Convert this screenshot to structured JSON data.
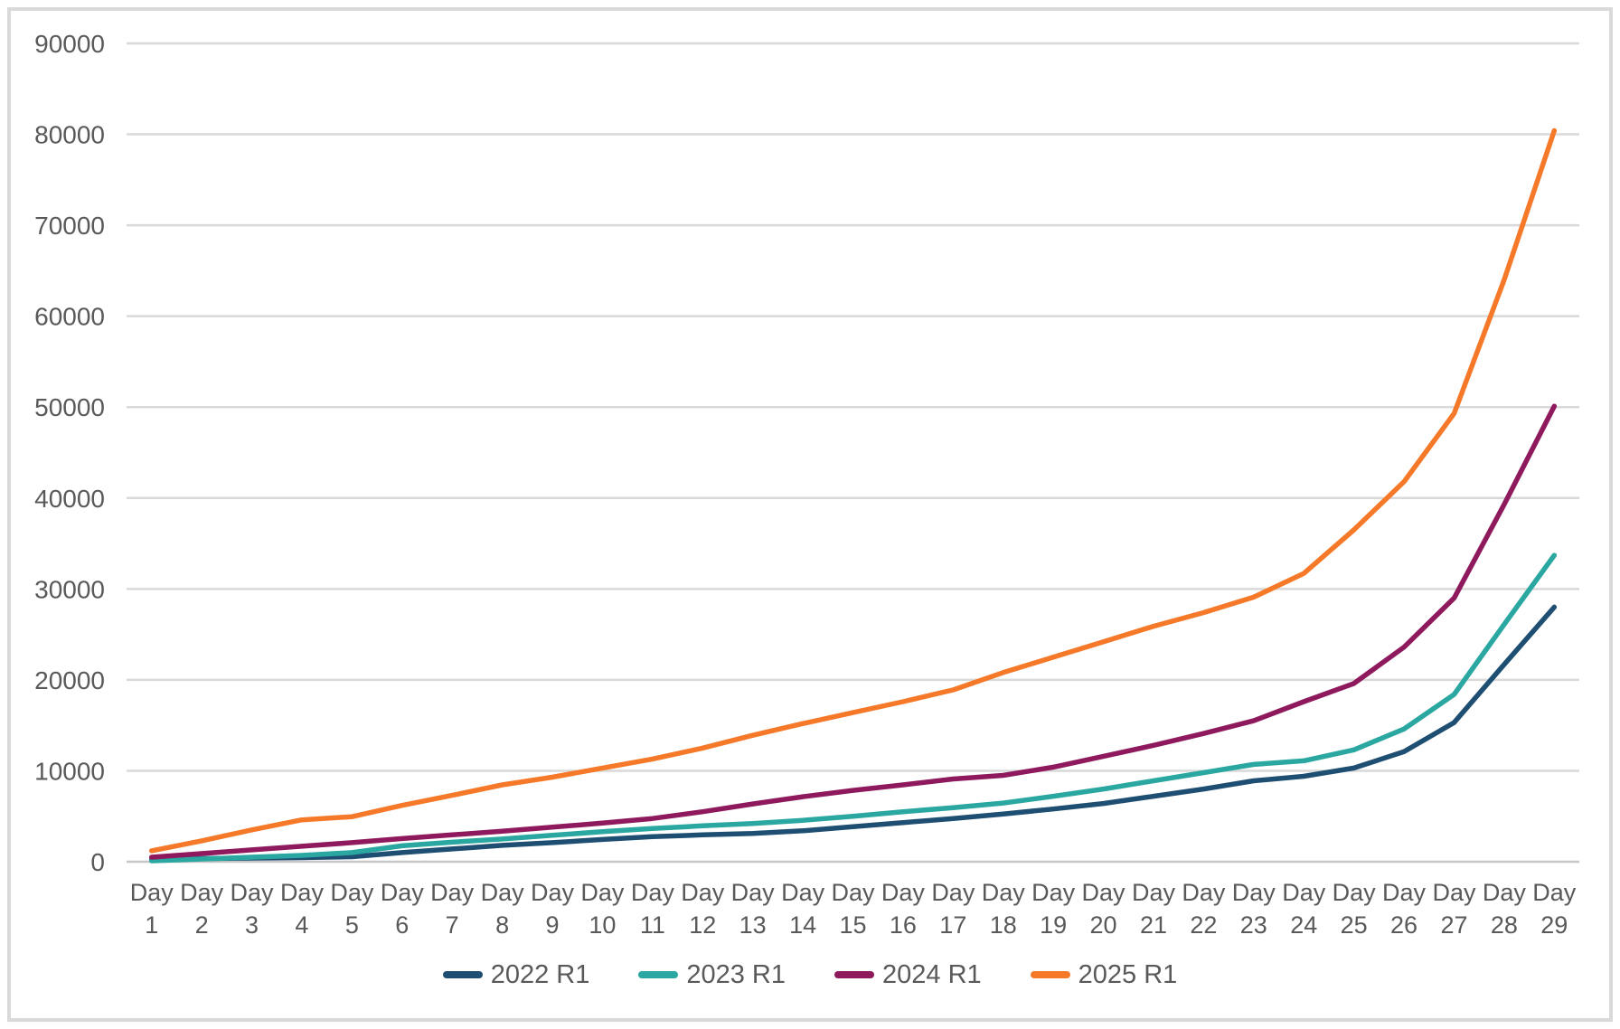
{
  "chart_data": {
    "type": "line",
    "title": "",
    "xlabel": "",
    "ylabel": "",
    "ylim": [
      0,
      90000
    ],
    "y_tick_step": 10000,
    "y_ticks": [
      0,
      10000,
      20000,
      30000,
      40000,
      50000,
      60000,
      70000,
      80000,
      90000
    ],
    "grid": "horizontal",
    "legend_position": "bottom",
    "categories": [
      "Day 1",
      "Day 2",
      "Day 3",
      "Day 4",
      "Day 5",
      "Day 6",
      "Day 7",
      "Day 8",
      "Day 9",
      "Day 10",
      "Day 11",
      "Day 12",
      "Day 13",
      "Day 14",
      "Day 15",
      "Day 16",
      "Day 17",
      "Day 18",
      "Day 19",
      "Day 20",
      "Day 21",
      "Day 22",
      "Day 23",
      "Day 24",
      "Day 25",
      "Day 26",
      "Day 27",
      "Day 28",
      "Day 29"
    ],
    "series": [
      {
        "name": "2022 R1",
        "color": "#1e4e72",
        "values": [
          250,
          350,
          400,
          450,
          550,
          1000,
          1400,
          1800,
          2100,
          2450,
          2750,
          2950,
          3100,
          3400,
          3850,
          4300,
          4750,
          5250,
          5800,
          6400,
          7200,
          8000,
          8900,
          9400,
          10300,
          12100,
          15300,
          21700,
          28000
        ]
      },
      {
        "name": "2023 R1",
        "color": "#2aa7a0",
        "values": [
          100,
          300,
          500,
          700,
          1000,
          1750,
          2150,
          2500,
          2900,
          3300,
          3650,
          3950,
          4200,
          4550,
          5000,
          5500,
          5950,
          6450,
          7200,
          8000,
          8900,
          9800,
          10700,
          11100,
          12300,
          14600,
          18400,
          26100,
          33700
        ]
      },
      {
        "name": "2024 R1",
        "color": "#8e195c",
        "values": [
          500,
          900,
          1300,
          1700,
          2100,
          2550,
          2950,
          3350,
          3800,
          4250,
          4750,
          5500,
          6350,
          7150,
          7850,
          8450,
          9100,
          9500,
          10400,
          11600,
          12800,
          14100,
          15500,
          17600,
          19600,
          23600,
          29000,
          39300,
          50100
        ]
      },
      {
        "name": "2025 R1",
        "color": "#f57929",
        "values": [
          1200,
          2300,
          3500,
          4600,
          4950,
          6200,
          7300,
          8450,
          9300,
          10300,
          11300,
          12500,
          13900,
          15200,
          16400,
          17600,
          18900,
          20800,
          22500,
          24200,
          25900,
          27400,
          29100,
          31700,
          36500,
          41800,
          49300,
          64000,
          80400
        ]
      }
    ]
  },
  "style": {
    "gridline_color": "#d9d9d9",
    "zero_line_color": "#c6c6c6",
    "tick_label_color": "#595959",
    "line_width": 5.5
  }
}
